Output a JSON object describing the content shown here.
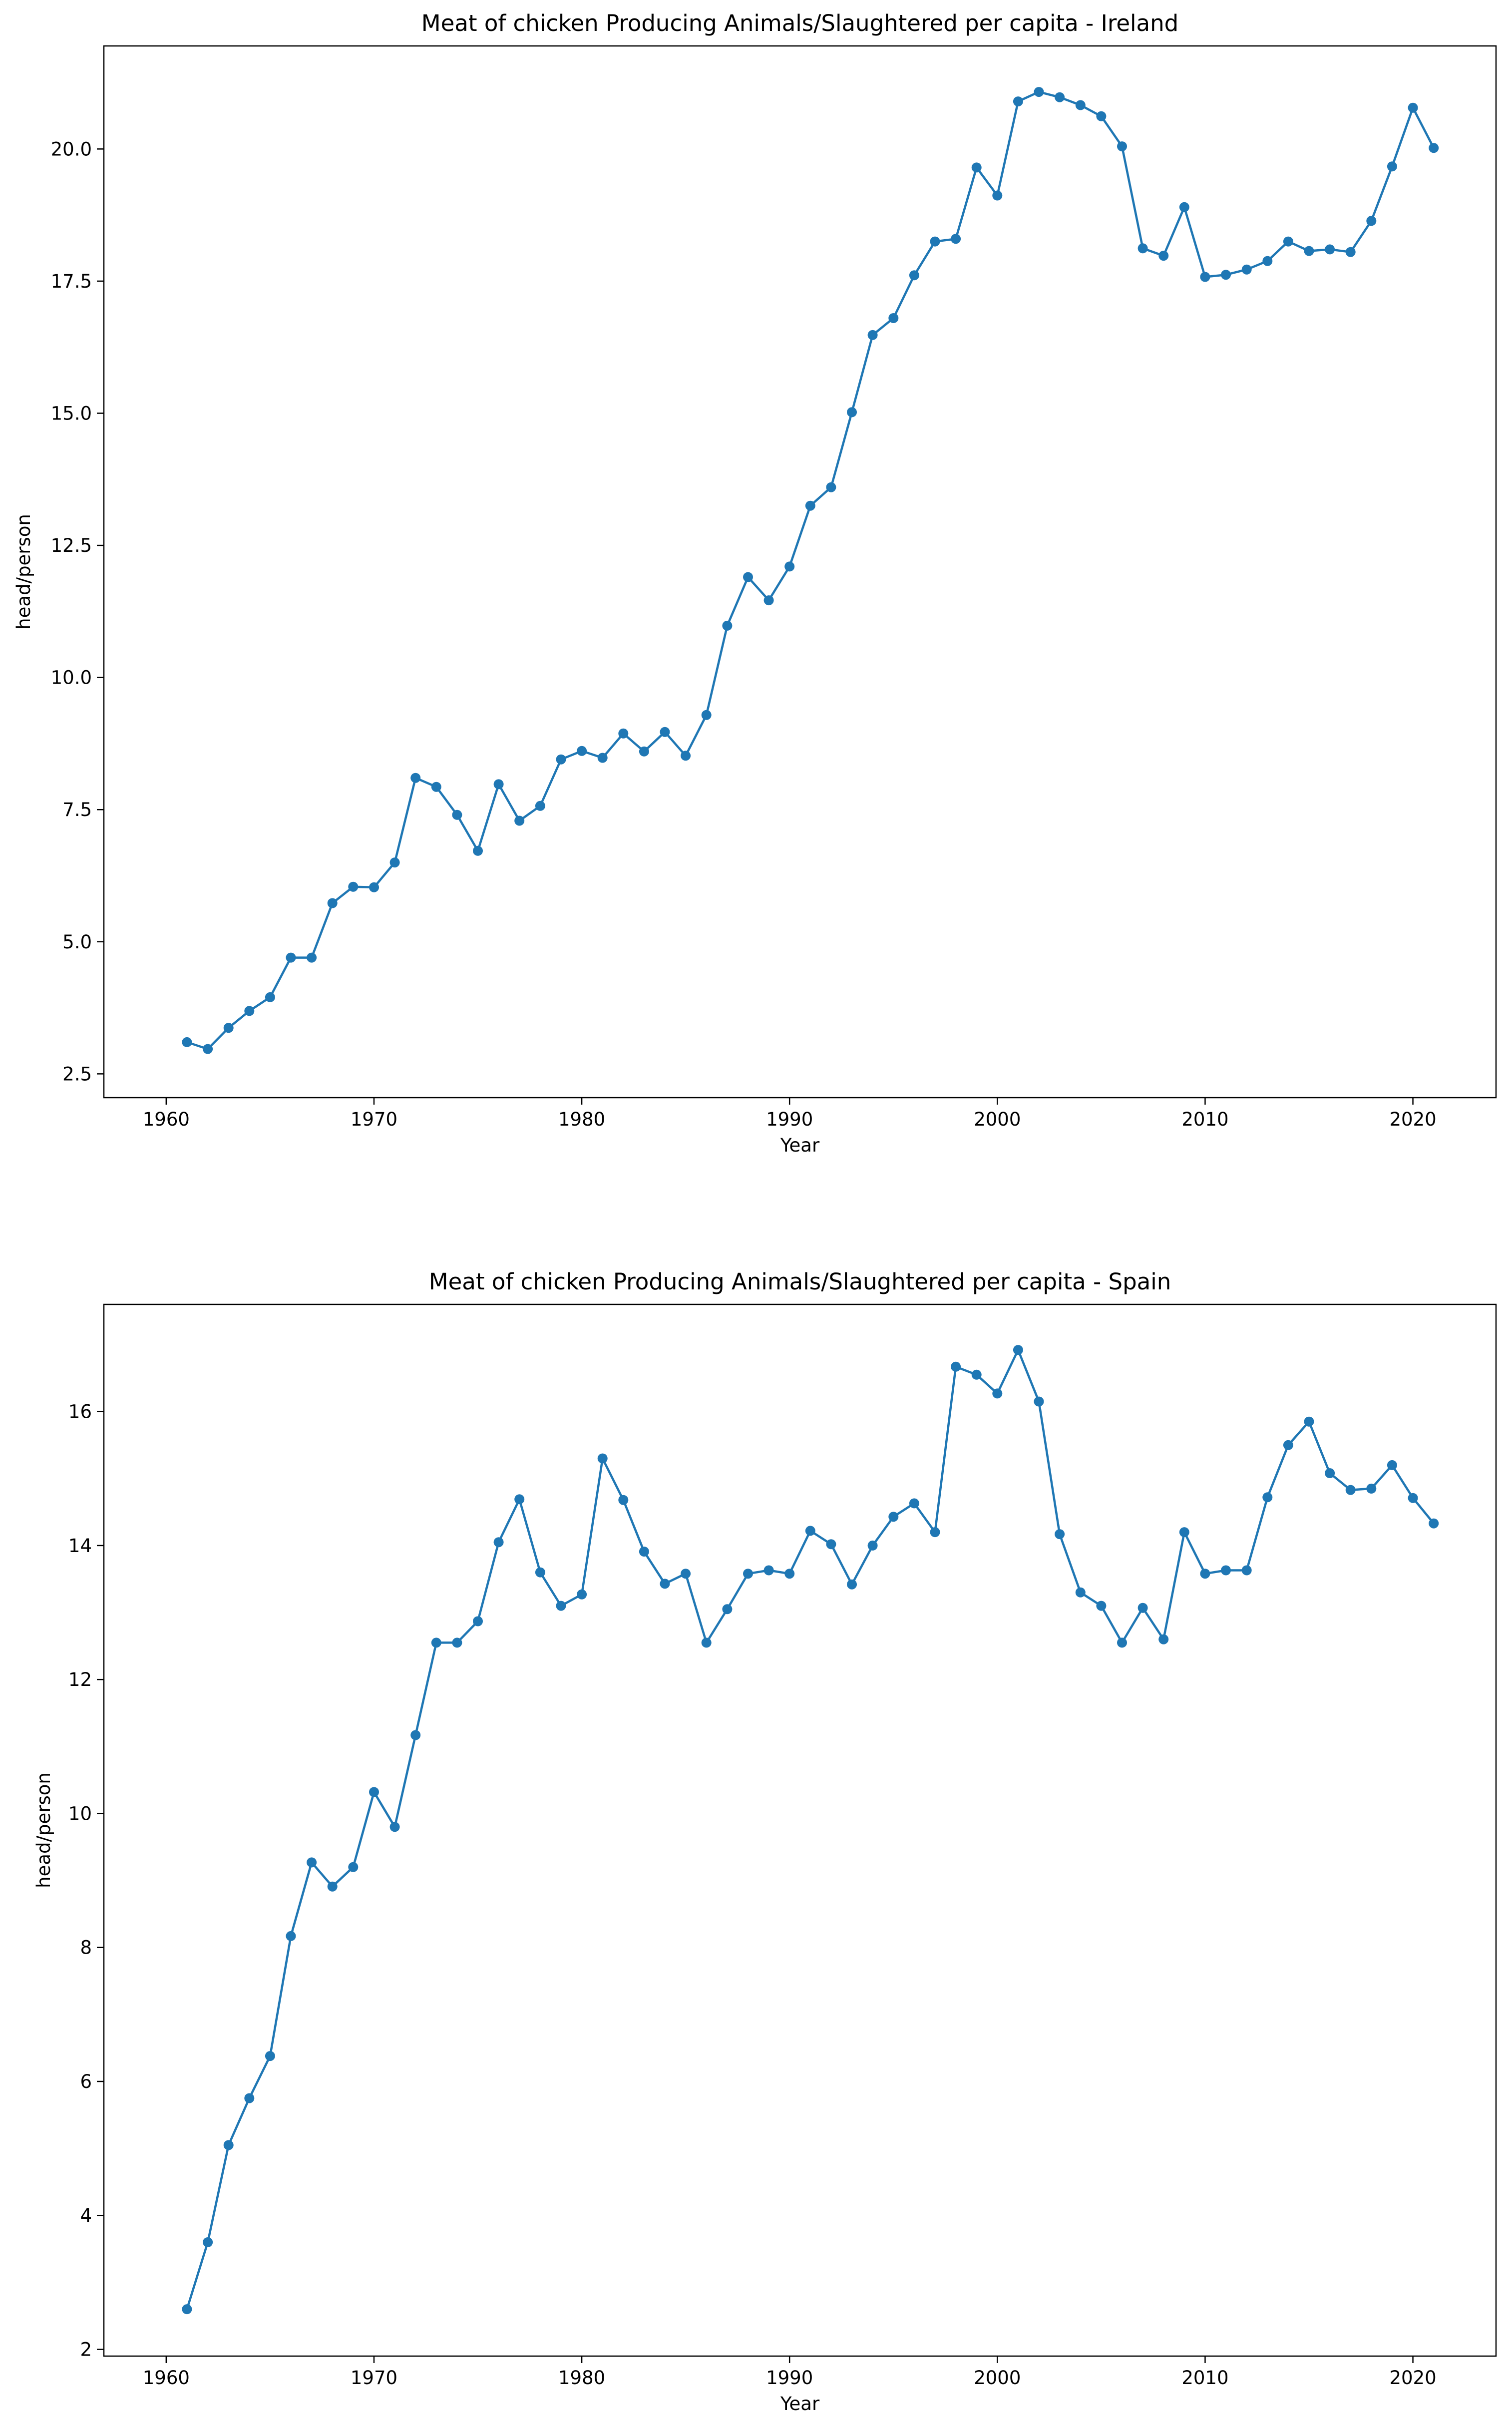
{
  "chart_data": [
    {
      "type": "line",
      "title": "Meat of chicken Producing Animals/Slaughtered per capita - Ireland",
      "xlabel": "Year",
      "ylabel": "head/person",
      "xlim": [
        1957.0,
        2024.0
      ],
      "ylim": [
        2.05,
        21.95
      ],
      "xticks": [
        1960,
        1970,
        1980,
        1990,
        2000,
        2010,
        2020
      ],
      "yticks": [
        2.5,
        5.0,
        7.5,
        10.0,
        12.5,
        15.0,
        17.5,
        20.0
      ],
      "ytick_labels": [
        "2.5",
        "5.0",
        "7.5",
        "10.0",
        "12.5",
        "15.0",
        "17.5",
        "20.0"
      ],
      "grid": false,
      "color": "#1f77b4",
      "marker": "circle",
      "series": [
        {
          "x": [
            1961,
            1962,
            1963,
            1964,
            1965,
            1966,
            1967,
            1968,
            1969,
            1970,
            1971,
            1972,
            1973,
            1974,
            1975,
            1976,
            1977,
            1978,
            1979,
            1980,
            1981,
            1982,
            1983,
            1984,
            1985,
            1986,
            1987,
            1988,
            1989,
            1990,
            1991,
            1992,
            1993,
            1994,
            1995,
            1996,
            1997,
            1998,
            1999,
            2000,
            2001,
            2002,
            2003,
            2004,
            2005,
            2006,
            2007,
            2008,
            2009,
            2010,
            2011,
            2012,
            2013,
            2014,
            2015,
            2016,
            2017,
            2018,
            2019,
            2020,
            2021
          ],
          "values": [
            3.1,
            2.97,
            3.37,
            3.69,
            3.95,
            4.7,
            4.7,
            5.73,
            6.04,
            6.03,
            6.5,
            8.1,
            7.93,
            7.4,
            6.72,
            7.98,
            7.29,
            7.57,
            8.45,
            8.61,
            8.48,
            8.94,
            8.6,
            8.97,
            8.52,
            9.29,
            10.98,
            11.9,
            11.46,
            12.1,
            13.25,
            13.6,
            15.02,
            16.48,
            16.8,
            17.61,
            18.25,
            18.3,
            19.65,
            19.12,
            20.9,
            21.08,
            20.98,
            20.83,
            20.62,
            20.05,
            18.12,
            17.98,
            18.9,
            17.58,
            17.62,
            17.72,
            17.88,
            18.25,
            18.07,
            18.1,
            18.05,
            18.64,
            19.67,
            20.78,
            20.02
          ]
        }
      ]
    },
    {
      "type": "line",
      "title": "Meat of chicken Producing Animals/Slaughtered per capita - Spain",
      "xlabel": "Year",
      "ylabel": "head/person",
      "xlim": [
        1957.0,
        2024.0
      ],
      "ylim": [
        1.9,
        17.6
      ],
      "xticks": [
        1960,
        1970,
        1980,
        1990,
        2000,
        2010,
        2020
      ],
      "yticks": [
        2,
        4,
        6,
        8,
        10,
        12,
        14,
        16
      ],
      "ytick_labels": [
        "2",
        "4",
        "6",
        "8",
        "10",
        "12",
        "14",
        "16"
      ],
      "grid": false,
      "color": "#1f77b4",
      "marker": "circle",
      "series": [
        {
          "x": [
            1961,
            1962,
            1963,
            1964,
            1965,
            1966,
            1967,
            1968,
            1969,
            1970,
            1971,
            1972,
            1973,
            1974,
            1975,
            1976,
            1977,
            1978,
            1979,
            1980,
            1981,
            1982,
            1983,
            1984,
            1985,
            1986,
            1987,
            1988,
            1989,
            1990,
            1991,
            1992,
            1993,
            1994,
            1995,
            1996,
            1997,
            1998,
            1999,
            2000,
            2001,
            2002,
            2003,
            2004,
            2005,
            2006,
            2007,
            2008,
            2009,
            2010,
            2011,
            2012,
            2013,
            2014,
            2015,
            2016,
            2017,
            2018,
            2019,
            2020,
            2021
          ],
          "values": [
            2.6,
            3.6,
            5.05,
            5.75,
            6.38,
            8.17,
            9.27,
            8.91,
            9.2,
            10.32,
            9.8,
            11.17,
            12.55,
            12.55,
            12.87,
            14.05,
            14.69,
            13.6,
            13.1,
            13.27,
            15.3,
            14.68,
            13.91,
            13.43,
            13.58,
            12.55,
            13.05,
            13.58,
            13.63,
            13.58,
            14.22,
            14.02,
            13.42,
            14.0,
            14.43,
            14.63,
            14.2,
            16.67,
            16.55,
            16.27,
            16.92,
            16.15,
            14.17,
            13.3,
            13.1,
            12.55,
            13.07,
            12.6,
            14.2,
            13.58,
            13.63,
            13.63,
            14.72,
            15.5,
            15.85,
            15.08,
            14.83,
            14.85,
            15.2,
            14.71,
            14.33
          ]
        }
      ]
    }
  ]
}
